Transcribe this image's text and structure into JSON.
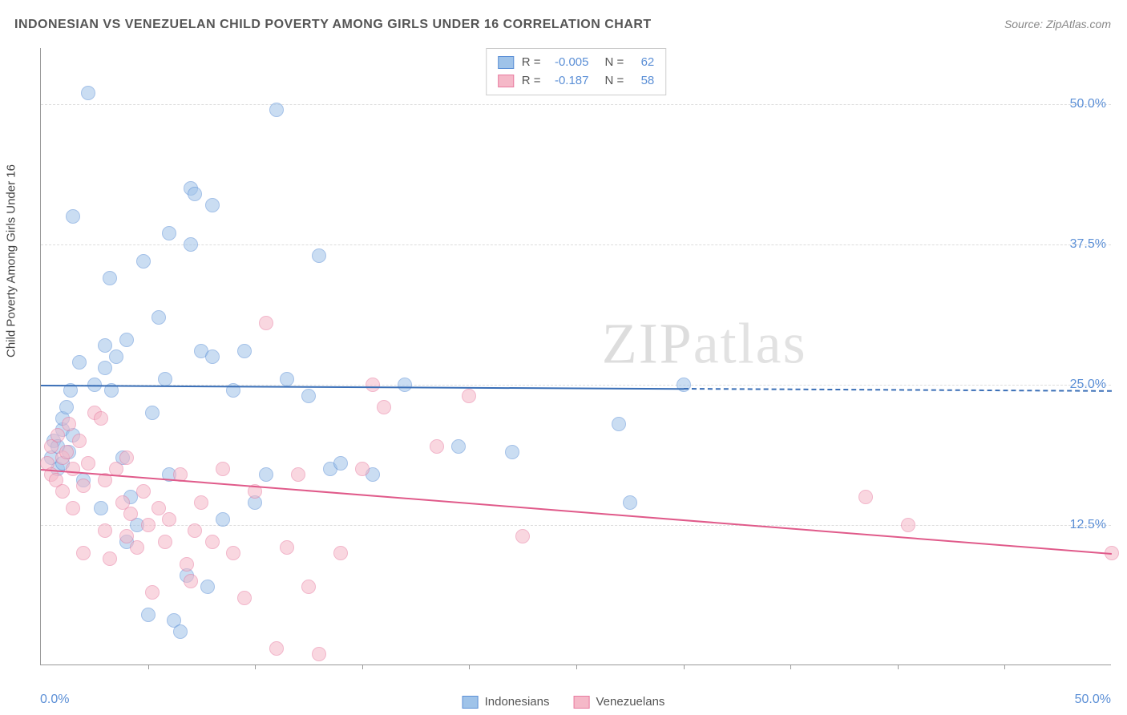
{
  "title": "INDONESIAN VS VENEZUELAN CHILD POVERTY AMONG GIRLS UNDER 16 CORRELATION CHART",
  "source": "Source: ZipAtlas.com",
  "ylabel": "Child Poverty Among Girls Under 16",
  "watermark_a": "ZIP",
  "watermark_b": "atlas",
  "chart": {
    "type": "scatter",
    "xlim": [
      0,
      50
    ],
    "ylim": [
      0,
      55
    ],
    "x_ticks": [
      5,
      10,
      15,
      20,
      25,
      30,
      35,
      40,
      45
    ],
    "y_ticks": [
      {
        "val": 12.5,
        "label": "12.5%"
      },
      {
        "val": 25.0,
        "label": "25.0%"
      },
      {
        "val": 37.5,
        "label": "37.5%"
      },
      {
        "val": 50.0,
        "label": "50.0%"
      }
    ],
    "x_left_label": "0.0%",
    "x_right_label": "50.0%",
    "grid_color": "#dddddd",
    "axis_color": "#999999",
    "background_color": "#ffffff",
    "point_radius": 9,
    "point_opacity": 0.55,
    "series": [
      {
        "name": "Indonesians",
        "fill": "#9fc3e9",
        "stroke": "#5b8fd6",
        "line_color": "#3a6fb7",
        "R": "-0.005",
        "N": "62",
        "trend": {
          "x1": 0,
          "y1": 25.0,
          "x2": 30,
          "y2": 24.7,
          "dash_to_x": 50
        },
        "points": [
          [
            0.5,
            18.5
          ],
          [
            0.6,
            20.0
          ],
          [
            0.8,
            17.5
          ],
          [
            0.8,
            19.5
          ],
          [
            1.0,
            21.0
          ],
          [
            1.0,
            22.0
          ],
          [
            1.0,
            18.0
          ],
          [
            1.2,
            23.0
          ],
          [
            1.3,
            19.0
          ],
          [
            1.4,
            24.5
          ],
          [
            1.5,
            20.5
          ],
          [
            1.5,
            40.0
          ],
          [
            1.8,
            27.0
          ],
          [
            2.0,
            16.5
          ],
          [
            2.2,
            51.0
          ],
          [
            2.5,
            25.0
          ],
          [
            2.8,
            14.0
          ],
          [
            3.0,
            28.5
          ],
          [
            3.0,
            26.5
          ],
          [
            3.2,
            34.5
          ],
          [
            3.3,
            24.5
          ],
          [
            3.5,
            27.5
          ],
          [
            3.8,
            18.5
          ],
          [
            4.0,
            11.0
          ],
          [
            4.0,
            29.0
          ],
          [
            4.2,
            15.0
          ],
          [
            4.5,
            12.5
          ],
          [
            4.8,
            36.0
          ],
          [
            5.0,
            4.5
          ],
          [
            5.2,
            22.5
          ],
          [
            5.5,
            31.0
          ],
          [
            5.8,
            25.5
          ],
          [
            6.0,
            38.5
          ],
          [
            6.0,
            17.0
          ],
          [
            6.2,
            4.0
          ],
          [
            6.5,
            3.0
          ],
          [
            6.8,
            8.0
          ],
          [
            7.0,
            42.5
          ],
          [
            7.0,
            37.5
          ],
          [
            7.2,
            42.0
          ],
          [
            7.5,
            28.0
          ],
          [
            7.8,
            7.0
          ],
          [
            8.0,
            27.5
          ],
          [
            8.0,
            41.0
          ],
          [
            8.5,
            13.0
          ],
          [
            9.0,
            24.5
          ],
          [
            9.5,
            28.0
          ],
          [
            10.0,
            14.5
          ],
          [
            10.5,
            17.0
          ],
          [
            11.0,
            49.5
          ],
          [
            11.5,
            25.5
          ],
          [
            12.5,
            24.0
          ],
          [
            13.0,
            36.5
          ],
          [
            13.5,
            17.5
          ],
          [
            14.0,
            18.0
          ],
          [
            15.5,
            17.0
          ],
          [
            17.0,
            25.0
          ],
          [
            19.5,
            19.5
          ],
          [
            22.0,
            19.0
          ],
          [
            27.0,
            21.5
          ],
          [
            27.5,
            14.5
          ],
          [
            30.0,
            25.0
          ]
        ]
      },
      {
        "name": "Venezuelans",
        "fill": "#f5b8c8",
        "stroke": "#e87ba0",
        "line_color": "#e05a8a",
        "R": "-0.187",
        "N": "58",
        "trend": {
          "x1": 0,
          "y1": 17.5,
          "x2": 50,
          "y2": 10.0,
          "dash_to_x": 50
        },
        "points": [
          [
            0.3,
            18.0
          ],
          [
            0.5,
            17.0
          ],
          [
            0.5,
            19.5
          ],
          [
            0.7,
            16.5
          ],
          [
            0.8,
            20.5
          ],
          [
            1.0,
            18.5
          ],
          [
            1.0,
            15.5
          ],
          [
            1.2,
            19.0
          ],
          [
            1.3,
            21.5
          ],
          [
            1.5,
            17.5
          ],
          [
            1.5,
            14.0
          ],
          [
            1.8,
            20.0
          ],
          [
            2.0,
            16.0
          ],
          [
            2.0,
            10.0
          ],
          [
            2.2,
            18.0
          ],
          [
            2.5,
            22.5
          ],
          [
            2.8,
            22.0
          ],
          [
            3.0,
            16.5
          ],
          [
            3.0,
            12.0
          ],
          [
            3.2,
            9.5
          ],
          [
            3.5,
            17.5
          ],
          [
            3.8,
            14.5
          ],
          [
            4.0,
            11.5
          ],
          [
            4.0,
            18.5
          ],
          [
            4.2,
            13.5
          ],
          [
            4.5,
            10.5
          ],
          [
            4.8,
            15.5
          ],
          [
            5.0,
            12.5
          ],
          [
            5.2,
            6.5
          ],
          [
            5.5,
            14.0
          ],
          [
            5.8,
            11.0
          ],
          [
            6.0,
            13.0
          ],
          [
            6.5,
            17.0
          ],
          [
            6.8,
            9.0
          ],
          [
            7.0,
            7.5
          ],
          [
            7.2,
            12.0
          ],
          [
            7.5,
            14.5
          ],
          [
            8.0,
            11.0
          ],
          [
            8.5,
            17.5
          ],
          [
            9.0,
            10.0
          ],
          [
            9.5,
            6.0
          ],
          [
            10.0,
            15.5
          ],
          [
            10.5,
            30.5
          ],
          [
            11.0,
            1.5
          ],
          [
            11.5,
            10.5
          ],
          [
            12.0,
            17.0
          ],
          [
            12.5,
            7.0
          ],
          [
            13.0,
            1.0
          ],
          [
            14.0,
            10.0
          ],
          [
            15.0,
            17.5
          ],
          [
            15.5,
            25.0
          ],
          [
            16.0,
            23.0
          ],
          [
            18.5,
            19.5
          ],
          [
            20.0,
            24.0
          ],
          [
            22.5,
            11.5
          ],
          [
            38.5,
            15.0
          ],
          [
            40.5,
            12.5
          ],
          [
            50.0,
            10.0
          ]
        ]
      }
    ]
  },
  "legend_bottom": [
    {
      "label": "Indonesians",
      "fill": "#9fc3e9",
      "stroke": "#5b8fd6"
    },
    {
      "label": "Venezuelans",
      "fill": "#f5b8c8",
      "stroke": "#e87ba0"
    }
  ]
}
